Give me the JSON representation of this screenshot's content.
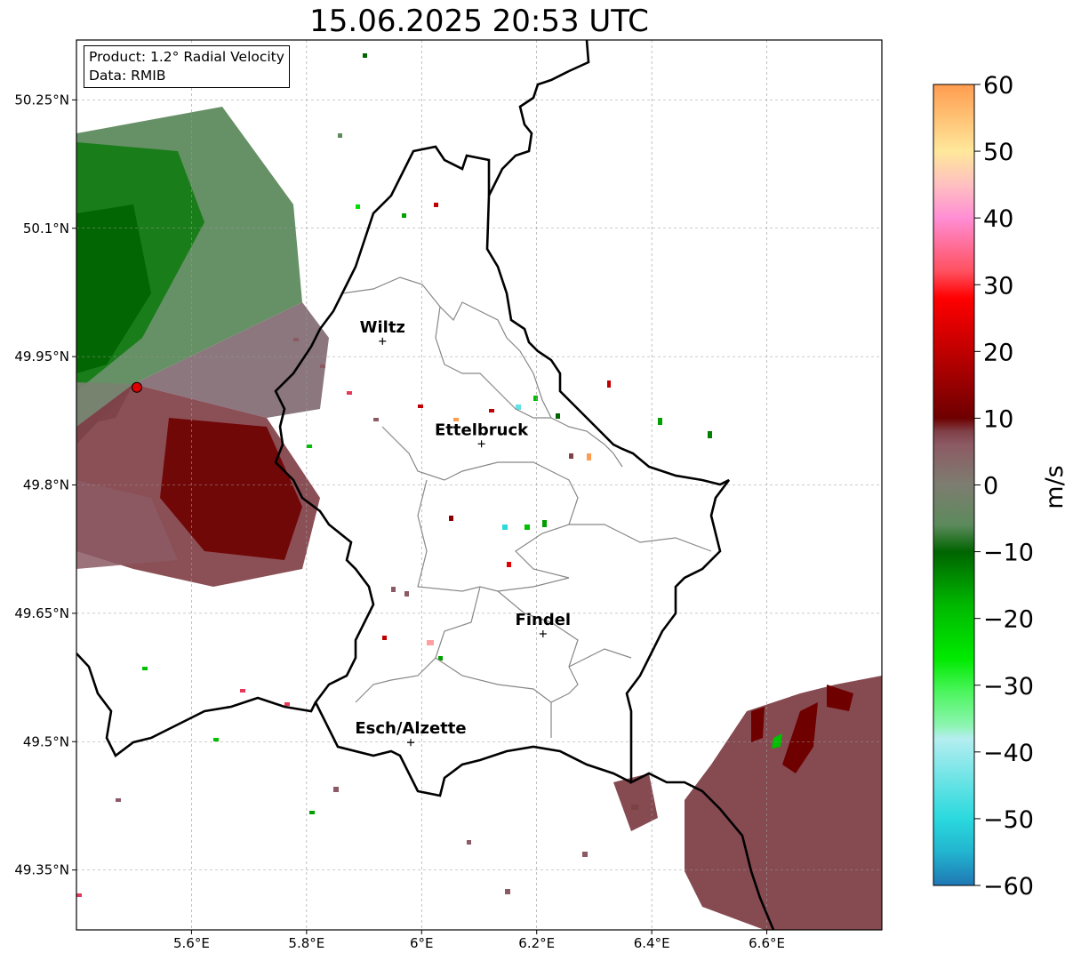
{
  "title": "15.06.2025 20:53 UTC",
  "info_box": {
    "product_line": "Product: 1.2° Radial Velocity",
    "data_line": "Data: RMIB"
  },
  "map": {
    "extent": {
      "lon": [
        5.4,
        6.8
      ],
      "lat": [
        49.28,
        50.32
      ]
    },
    "lon_ticks": [
      5.6,
      5.8,
      6.0,
      6.2,
      6.4,
      6.6
    ],
    "lon_tick_labels": [
      "5.6°E",
      "5.8°E",
      "6°E",
      "6.2°E",
      "6.4°E",
      "6.6°E"
    ],
    "lat_ticks": [
      50.25,
      50.1,
      49.95,
      49.8,
      49.65,
      49.5,
      49.35
    ],
    "lat_tick_labels": [
      "50.25°N",
      "50.1°N",
      "49.95°N",
      "49.8°N",
      "49.65°N",
      "49.5°N",
      "49.35°N"
    ],
    "gridlines": "dashed",
    "radar_site": {
      "lon": 5.505,
      "lat": 49.914,
      "color": "#e00000"
    },
    "cities": [
      {
        "name": "Wiltz",
        "lon": 5.932,
        "lat": 49.968
      },
      {
        "name": "Ettelbruck",
        "lon": 6.104,
        "lat": 49.848
      },
      {
        "name": "Findel",
        "lon": 6.211,
        "lat": 49.626
      },
      {
        "name": "Esch/Alzette",
        "lon": 5.981,
        "lat": 49.499
      }
    ]
  },
  "colorbar": {
    "label": "m/s",
    "min": -60,
    "max": 60,
    "ticks": [
      60,
      50,
      40,
      30,
      20,
      10,
      0,
      -10,
      -20,
      -30,
      -40,
      -50,
      -60
    ],
    "tick_labels": [
      "60",
      "50",
      "40",
      "30",
      "20",
      "10",
      "0",
      "−10",
      "−20",
      "−30",
      "−40",
      "−50",
      "−60"
    ],
    "stops": [
      {
        "v": -60,
        "color": "#1f77b4"
      },
      {
        "v": -55,
        "color": "#22b4cf"
      },
      {
        "v": -50,
        "color": "#2ad9de"
      },
      {
        "v": -45,
        "color": "#62e2e4"
      },
      {
        "v": -38,
        "color": "#b5eef0"
      },
      {
        "v": -36,
        "color": "#8cf5b0"
      },
      {
        "v": -31,
        "color": "#4cf55e"
      },
      {
        "v": -26,
        "color": "#00ea00"
      },
      {
        "v": -18,
        "color": "#00b800"
      },
      {
        "v": -10,
        "color": "#006400"
      },
      {
        "v": -6,
        "color": "#5c8a5c"
      },
      {
        "v": 0,
        "color": "#7d7d70"
      },
      {
        "v": 6,
        "color": "#8c5a64"
      },
      {
        "v": 8,
        "color": "#804048"
      },
      {
        "v": 10,
        "color": "#6e0000"
      },
      {
        "v": 20,
        "color": "#c00000"
      },
      {
        "v": 28,
        "color": "#ff0000"
      },
      {
        "v": 32,
        "color": "#ff5060"
      },
      {
        "v": 40,
        "color": "#ff8ed4"
      },
      {
        "v": 45,
        "color": "#ffc0c0"
      },
      {
        "v": 50,
        "color": "#ffe89a"
      },
      {
        "v": 60,
        "color": "#ff9c50"
      }
    ]
  }
}
